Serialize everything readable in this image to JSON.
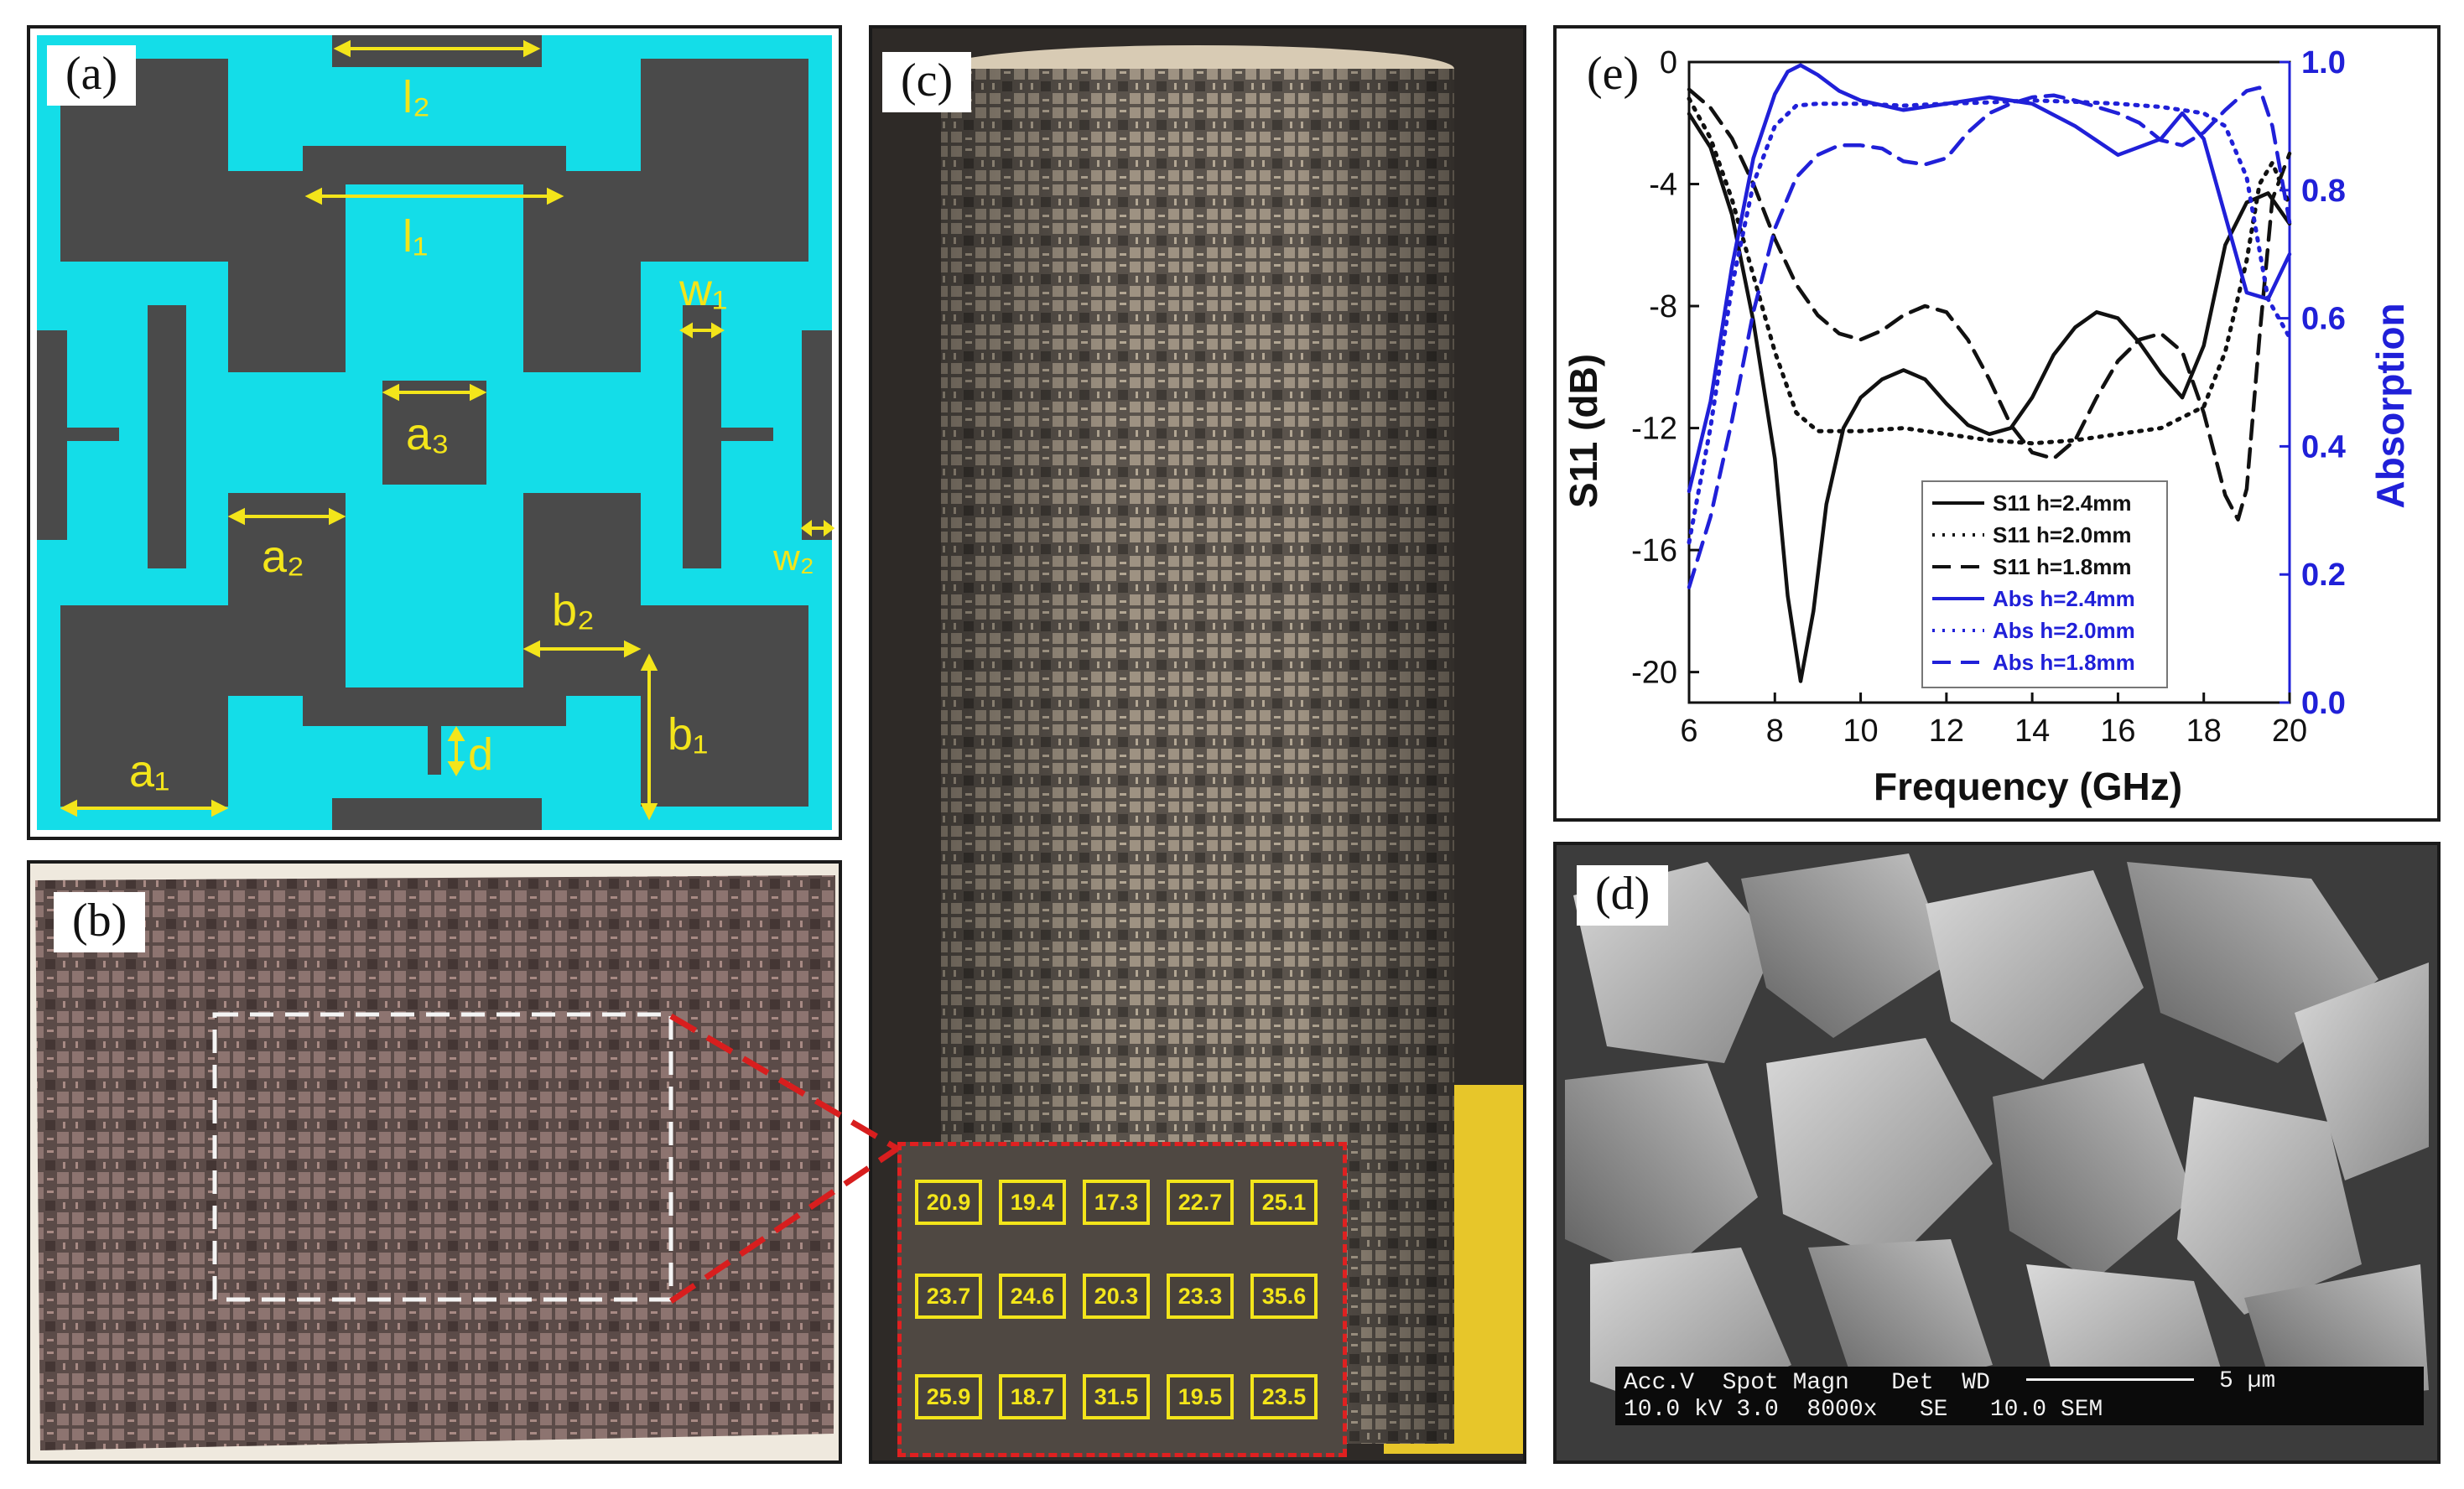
{
  "panels": {
    "a": {
      "label": "(a)",
      "dims": {
        "l2": "l₂",
        "l1": "l₁",
        "w1": "w₁",
        "w2": "w₂",
        "a3": "a₃",
        "a2": "a₂",
        "a1": "a₁",
        "b2": "b₂",
        "b1": "b₁",
        "d": "d"
      },
      "colors": {
        "substrate": "#14dde8",
        "resistive": "#4a4a4a",
        "dimension": "#f3e51a"
      }
    },
    "b": {
      "label": "(b)"
    },
    "c": {
      "label": "(c)",
      "values": [
        [
          "20.9",
          "19.4",
          "17.3",
          "22.7",
          "25.1"
        ],
        [
          "23.7",
          "24.6",
          "20.3",
          "23.3",
          "35.6"
        ],
        [
          "25.9",
          "18.7",
          "31.5",
          "19.5",
          "23.5"
        ]
      ]
    },
    "d": {
      "label": "(d)",
      "sem": {
        "header": "Acc.V  Spot Magn   Det  WD",
        "values": "10.0 kV 3.0  8000x   SE   10.0 SEM",
        "scale": "5 µm"
      }
    },
    "e": {
      "label": "(e)"
    }
  },
  "chart_data": {
    "type": "line",
    "title": "",
    "xlabel": "Frequency (GHz)",
    "ylabel": "S11 (dB)",
    "y2label": "Absorption",
    "xlim": [
      6,
      20
    ],
    "ylim": [
      -21,
      0
    ],
    "y2lim": [
      0,
      1
    ],
    "xticks": [
      "6",
      "8",
      "10",
      "12",
      "14",
      "16",
      "18",
      "20"
    ],
    "yticks": [
      "0",
      "-4",
      "-8",
      "-12",
      "-16",
      "-20"
    ],
    "y2ticks": [
      "0.0",
      "0.2",
      "0.4",
      "0.6",
      "0.8",
      "1.0"
    ],
    "legend_position": "bottom-center",
    "colors": {
      "s11": "#111111",
      "abs": "#2020d8"
    },
    "series": [
      {
        "name": "S11 h=2.4mm",
        "axis": "left",
        "style": "solid",
        "x": [
          6,
          6.5,
          7,
          7.5,
          8,
          8.3,
          8.6,
          8.9,
          9.2,
          9.6,
          10,
          10.5,
          11,
          11.5,
          12,
          12.5,
          13,
          13.5,
          14,
          14.5,
          15,
          15.5,
          16,
          16.5,
          17,
          17.5,
          18,
          18.5,
          19,
          19.5,
          20
        ],
        "y": [
          -1.7,
          -2.8,
          -5.0,
          -8.5,
          -13.0,
          -17.5,
          -20.3,
          -18.0,
          -14.5,
          -12.0,
          -11.0,
          -10.4,
          -10.1,
          -10.4,
          -11.2,
          -11.9,
          -12.2,
          -12.0,
          -11.0,
          -9.6,
          -8.7,
          -8.2,
          -8.4,
          -9.2,
          -10.2,
          -11.0,
          -9.3,
          -6.0,
          -4.6,
          -4.3,
          -5.3
        ]
      },
      {
        "name": "S11 h=2.0mm",
        "axis": "left",
        "style": "dotted",
        "x": [
          6,
          6.5,
          7,
          7.5,
          8,
          8.5,
          9,
          10,
          11,
          12,
          13,
          14,
          15,
          16,
          17,
          18,
          18.5,
          19,
          19.3,
          19.6,
          20
        ],
        "y": [
          -1.2,
          -2.5,
          -4.5,
          -7.0,
          -9.5,
          -11.5,
          -12.1,
          -12.1,
          -12.0,
          -12.2,
          -12.4,
          -12.5,
          -12.4,
          -12.2,
          -12.0,
          -11.3,
          -9.5,
          -6.5,
          -4.0,
          -3.3,
          -4.7
        ]
      },
      {
        "name": "S11 h=1.8mm",
        "axis": "left",
        "style": "dashed",
        "x": [
          6,
          6.5,
          7,
          7.5,
          8,
          8.5,
          9,
          9.5,
          10,
          10.5,
          11,
          11.5,
          12,
          12.5,
          13,
          13.5,
          14,
          14.5,
          15,
          15.5,
          16,
          16.5,
          17,
          17.5,
          18,
          18.5,
          18.8,
          19,
          19.3,
          19.6,
          20
        ],
        "y": [
          -0.9,
          -1.5,
          -2.5,
          -4.0,
          -5.8,
          -7.3,
          -8.3,
          -8.9,
          -9.1,
          -8.8,
          -8.3,
          -8.0,
          -8.2,
          -9.1,
          -10.4,
          -11.9,
          -12.8,
          -13.0,
          -12.4,
          -11.0,
          -9.8,
          -9.1,
          -8.9,
          -9.5,
          -11.5,
          -14.2,
          -15.0,
          -14.0,
          -9.0,
          -4.5,
          -3.0
        ]
      },
      {
        "name": "Abs h=2.4mm",
        "axis": "right",
        "style": "solid",
        "x": [
          6,
          6.5,
          7,
          7.5,
          8,
          8.3,
          8.6,
          9,
          9.5,
          10,
          11,
          12,
          13,
          14,
          15,
          16,
          17,
          17.5,
          18,
          18.5,
          19,
          19.5,
          20
        ],
        "y": [
          0.33,
          0.47,
          0.68,
          0.85,
          0.95,
          0.985,
          0.995,
          0.98,
          0.955,
          0.94,
          0.925,
          0.935,
          0.945,
          0.935,
          0.9,
          0.855,
          0.88,
          0.92,
          0.88,
          0.76,
          0.64,
          0.63,
          0.7
        ]
      },
      {
        "name": "Abs h=2.0mm",
        "axis": "right",
        "style": "dotted",
        "x": [
          6,
          6.5,
          7,
          7.5,
          8,
          8.5,
          9,
          10,
          11,
          12,
          13,
          14,
          15,
          16,
          17,
          18,
          18.5,
          19,
          19.5,
          20
        ],
        "y": [
          0.25,
          0.43,
          0.65,
          0.81,
          0.9,
          0.932,
          0.935,
          0.935,
          0.932,
          0.935,
          0.937,
          0.94,
          0.938,
          0.935,
          0.93,
          0.92,
          0.9,
          0.82,
          0.63,
          0.57
        ]
      },
      {
        "name": "Abs h=1.8mm",
        "axis": "right",
        "style": "dashed",
        "x": [
          6,
          6.5,
          7,
          7.5,
          8,
          8.5,
          9,
          9.5,
          10,
          10.5,
          11,
          11.5,
          12,
          12.5,
          13,
          13.5,
          14,
          14.5,
          15,
          15.5,
          16,
          16.5,
          17,
          17.5,
          18,
          18.5,
          19,
          19.3,
          19.6,
          20
        ],
        "y": [
          0.18,
          0.29,
          0.44,
          0.61,
          0.74,
          0.82,
          0.855,
          0.87,
          0.87,
          0.865,
          0.845,
          0.84,
          0.85,
          0.89,
          0.92,
          0.935,
          0.945,
          0.948,
          0.94,
          0.93,
          0.92,
          0.905,
          0.878,
          0.87,
          0.89,
          0.925,
          0.955,
          0.96,
          0.9,
          0.75
        ]
      }
    ]
  }
}
